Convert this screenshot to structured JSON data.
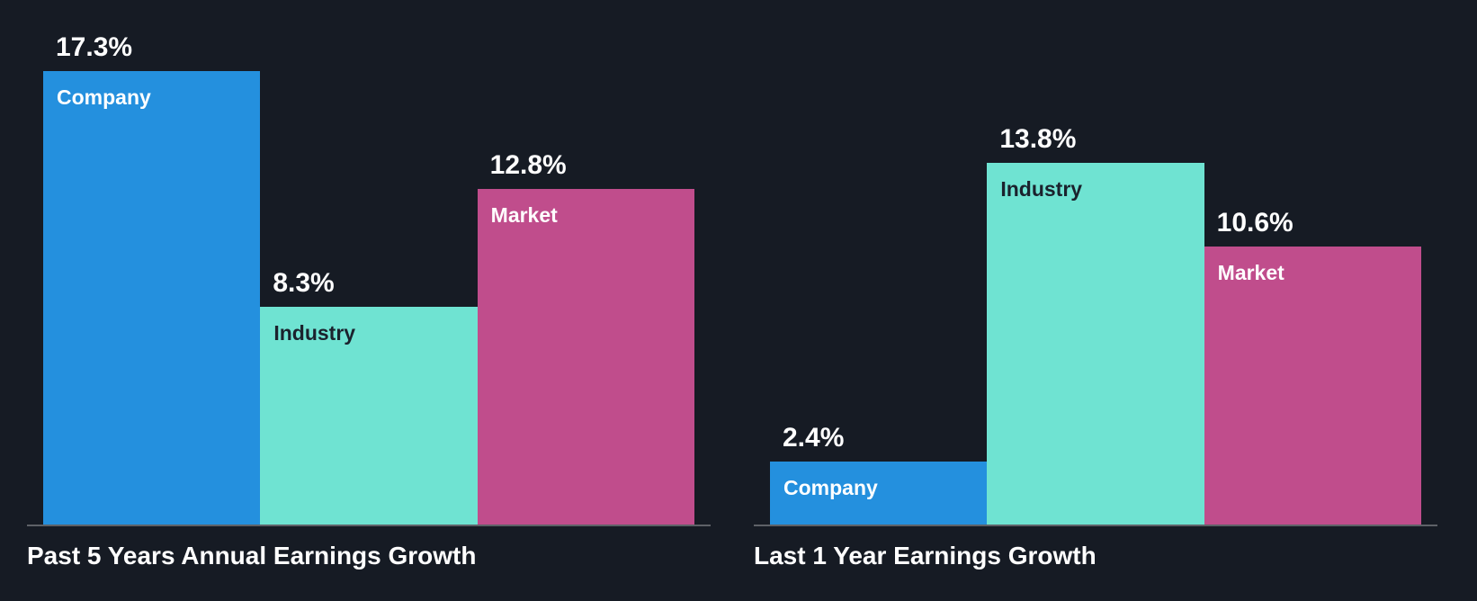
{
  "page": {
    "background_color": "#161B24",
    "axis_color": "#5E6167",
    "text_color": "#FFFFFF"
  },
  "chart_data": [
    {
      "type": "bar",
      "title": "Past 5 Years Annual Earnings Growth",
      "categories": [
        "Company",
        "Industry",
        "Market"
      ],
      "values": [
        17.3,
        8.3,
        12.8
      ],
      "value_labels": [
        "17.3%",
        "8.3%",
        "12.8%"
      ],
      "unit": "%",
      "ylim": [
        0,
        19
      ],
      "grid": false,
      "legend": "none",
      "bar_colors": [
        "#2490DE",
        "#6FE3D2",
        "#C04D8C"
      ],
      "category_label_colors": [
        "#FFFFFF",
        "#1B222D",
        "#FFFFFF"
      ]
    },
    {
      "type": "bar",
      "title": "Last 1 Year Earnings Growth",
      "categories": [
        "Company",
        "Industry",
        "Market"
      ],
      "values": [
        2.4,
        13.8,
        10.6
      ],
      "value_labels": [
        "2.4%",
        "13.8%",
        "10.6%"
      ],
      "unit": "%",
      "ylim": [
        0,
        19
      ],
      "grid": false,
      "legend": "none",
      "bar_colors": [
        "#2490DE",
        "#6FE3D2",
        "#C04D8C"
      ],
      "category_label_colors": [
        "#FFFFFF",
        "#1B222D",
        "#FFFFFF"
      ]
    }
  ]
}
